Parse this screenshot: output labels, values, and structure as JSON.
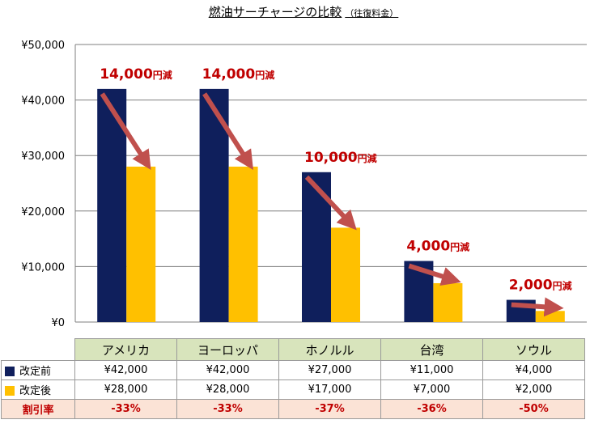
{
  "colors": {
    "before": "#0f1f5c",
    "after": "#ffc000",
    "arrow": "#c0504d",
    "annotation": "#c00000",
    "grid": "#7f7f7f",
    "header_bg": "#d8e4bc",
    "rate_bg": "#fbe3d6"
  },
  "chart_data": {
    "type": "bar",
    "title": "燃油サーチャージの比較",
    "subtitle": "（往復料金）",
    "categories": [
      "アメリカ",
      "ヨーロッパ",
      "ホノルル",
      "台湾",
      "ソウル"
    ],
    "series": [
      {
        "name": "改定前",
        "values": [
          42000,
          42000,
          27000,
          11000,
          4000
        ]
      },
      {
        "name": "改定後",
        "values": [
          28000,
          28000,
          17000,
          7000,
          2000
        ]
      }
    ],
    "ylim": [
      0,
      50000
    ],
    "yticks": [
      "¥0",
      "¥10,000",
      "¥20,000",
      "¥30,000",
      "¥40,000",
      "¥50,000"
    ],
    "grid": true,
    "legend": "data table below chart",
    "annotations": [
      {
        "amount": "14,000",
        "suffix": "円減"
      },
      {
        "amount": "14,000",
        "suffix": "円減"
      },
      {
        "amount": "10,000",
        "suffix": "円減"
      },
      {
        "amount": "4,000",
        "suffix": "円減"
      },
      {
        "amount": "2,000",
        "suffix": "円減"
      }
    ]
  },
  "table": {
    "columns": [
      "アメリカ",
      "ヨーロッパ",
      "ホノルル",
      "台湾",
      "ソウル"
    ],
    "rows": [
      {
        "label": "改定前",
        "values": [
          "¥42,000",
          "¥42,000",
          "¥27,000",
          "¥11,000",
          "¥4,000"
        ]
      },
      {
        "label": "改定後",
        "values": [
          "¥28,000",
          "¥28,000",
          "¥17,000",
          "¥7,000",
          "¥2,000"
        ]
      }
    ],
    "rate": {
      "label": "割引率",
      "values": [
        "-33%",
        "-33%",
        "-37%",
        "-36%",
        "-50%"
      ]
    }
  }
}
